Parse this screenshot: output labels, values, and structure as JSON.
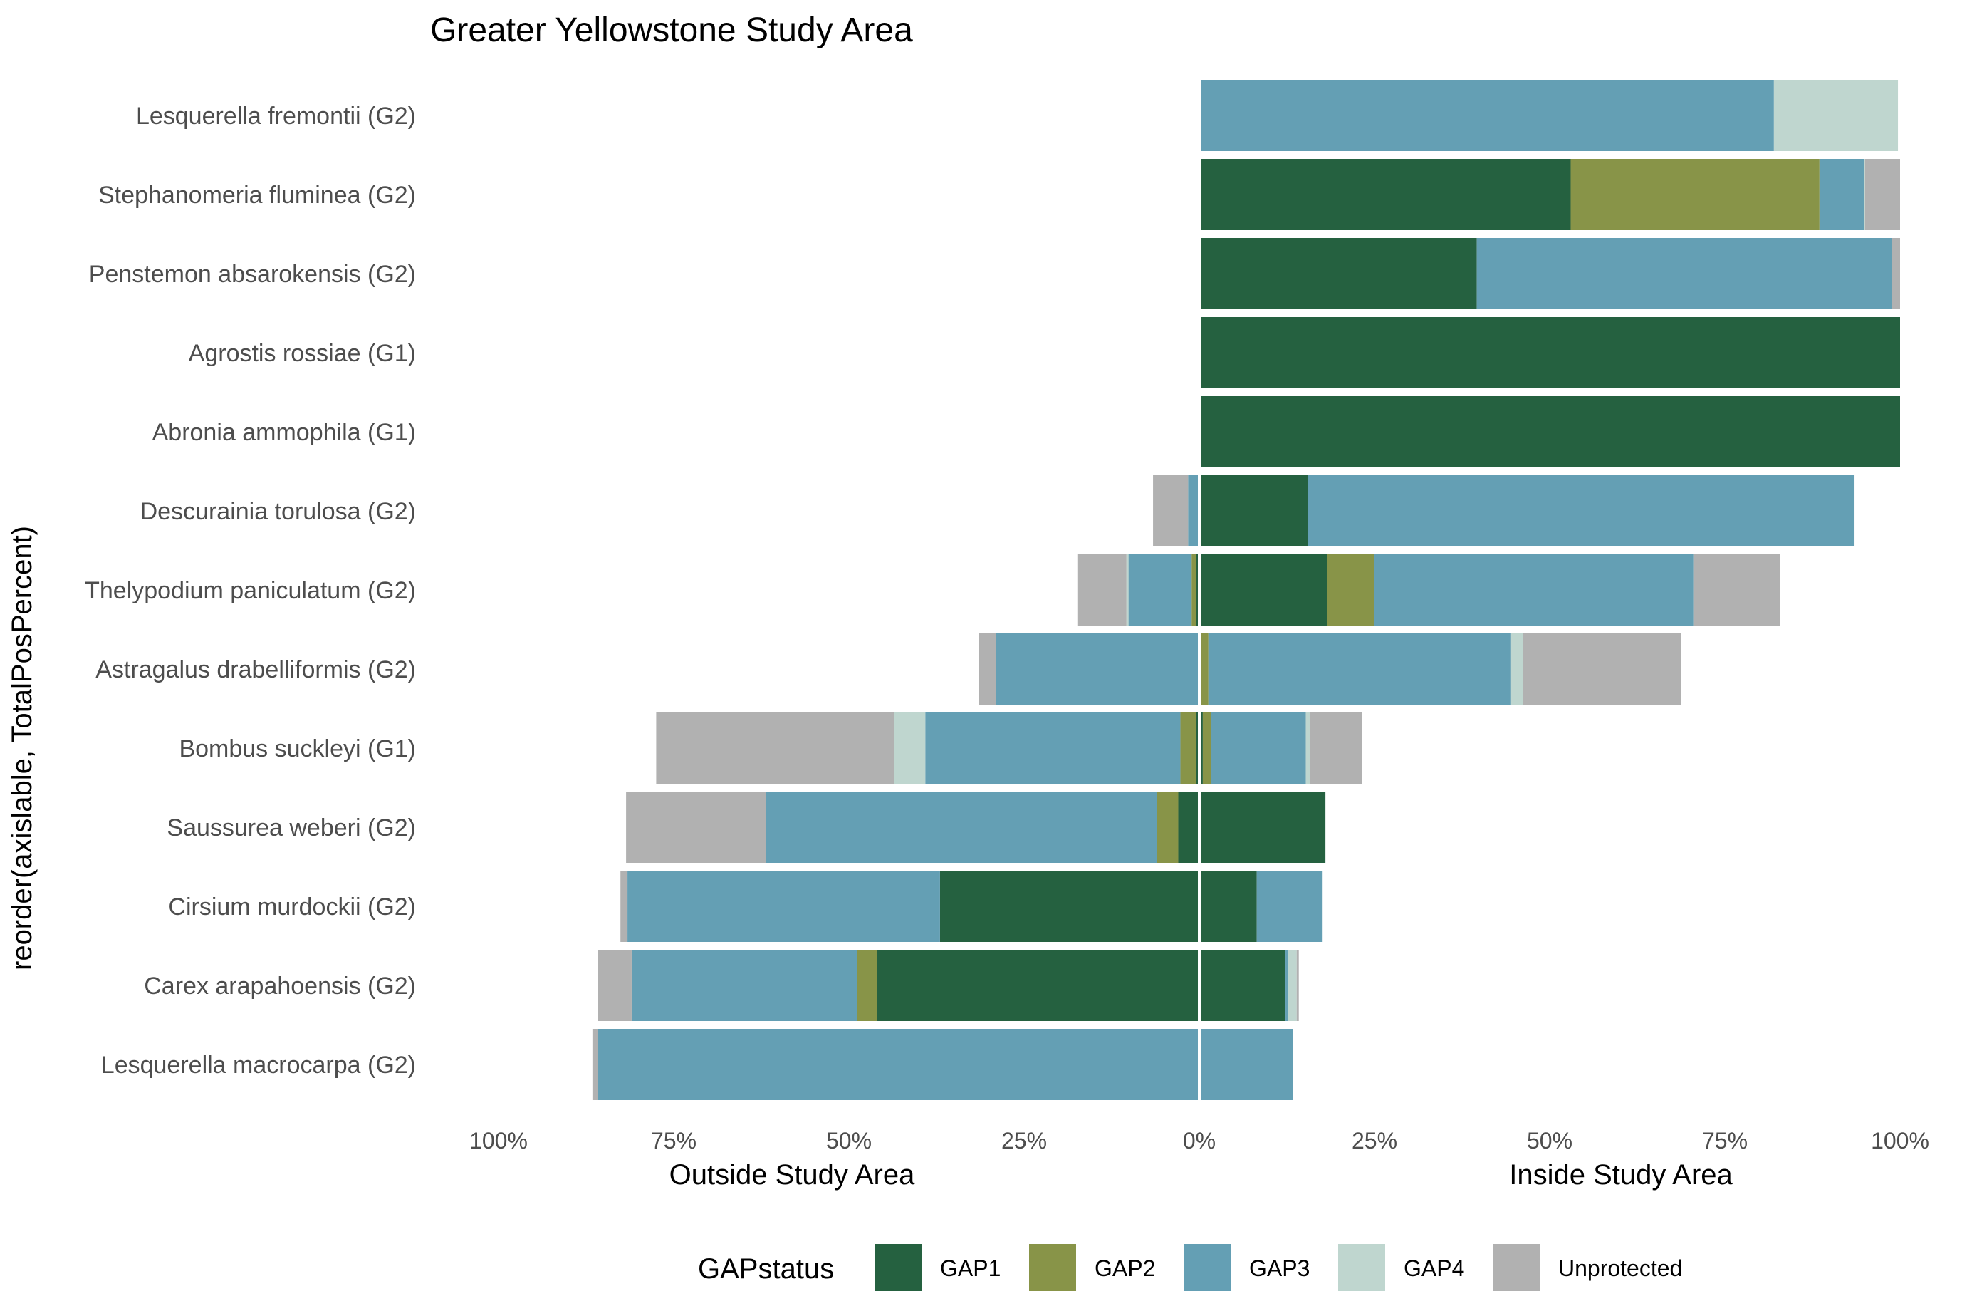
{
  "chart_data": {
    "type": "bar",
    "orientation": "horizontal",
    "stacking": "diverging",
    "title": "Greater Yellowstone Study Area",
    "ylabel": "reorder(axislable, TotalPosPercent)",
    "xlabel_left": "Outside Study Area",
    "xlabel_right": "Inside Study Area",
    "xlim": [
      -100,
      100
    ],
    "x_ticks": [
      "100%",
      "75%",
      "50%",
      "25%",
      "0%",
      "25%",
      "50%",
      "75%",
      "100%"
    ],
    "grid": false,
    "legend_position": "bottom",
    "legend_title": "GAPstatus",
    "categories": [
      "Lesquerella fremontii (G2)",
      "Stephanomeria fluminea (G2)",
      "Penstemon absarokensis (G2)",
      "Agrostis rossiae (G1)",
      "Abronia ammophila (G1)",
      "Descurainia torulosa (G2)",
      "Thelypodium paniculatum (G2)",
      "Astragalus drabelliformis (G2)",
      "Bombus suckleyi (G1)",
      "Saussurea weberi (G2)",
      "Cirsium murdockii (G2)",
      "Carex arapahoensis (G2)",
      "Lesquerella macrocarpa (G2)"
    ],
    "series": [
      {
        "name": "GAP1",
        "color": "#256140",
        "inside": [
          0,
          53,
          39.6,
          100,
          100,
          15.5,
          18.2,
          0,
          0.5,
          18,
          8.2,
          12.3,
          0
        ],
        "outside": [
          0,
          0,
          0,
          0,
          0,
          0,
          0.5,
          0,
          0.5,
          3,
          37,
          46,
          0
        ]
      },
      {
        "name": "GAP2",
        "color": "#889448",
        "inside": [
          0.3,
          35.5,
          0,
          0,
          0,
          0,
          6.7,
          1.3,
          1.2,
          0,
          0,
          0,
          0
        ],
        "outside": [
          0,
          0,
          0,
          0,
          0,
          0,
          0.6,
          0,
          2.2,
          3,
          0,
          2.8,
          0
        ]
      },
      {
        "name": "GAP3",
        "color": "#649fb4",
        "inside": [
          81.7,
          6.4,
          59.2,
          0,
          0,
          78,
          45.6,
          43.1,
          13.5,
          0,
          9.4,
          0.4,
          13.4
        ],
        "outside": [
          0,
          0,
          0,
          0,
          0,
          1.6,
          9,
          29,
          36.4,
          55.8,
          44.6,
          32.2,
          85.8
        ]
      },
      {
        "name": "GAP4",
        "color": "#bfd6cf",
        "inside": [
          17.7,
          0.1,
          0,
          0,
          0,
          0,
          0,
          1.8,
          0.6,
          0,
          0,
          1.2,
          0
        ],
        "outside": [
          0,
          0,
          0,
          0,
          0,
          0,
          0.3,
          0,
          4.4,
          0,
          0,
          0,
          0
        ]
      },
      {
        "name": "Unprotected",
        "color": "#b1b1b1",
        "inside": [
          0,
          5,
          1.2,
          0,
          0,
          0,
          12.4,
          22.6,
          7.4,
          0,
          0,
          0.3,
          0
        ],
        "outside": [
          0,
          0,
          0,
          0,
          0,
          5,
          7,
          2.5,
          34,
          20,
          1,
          4.8,
          0.8
        ]
      }
    ]
  }
}
